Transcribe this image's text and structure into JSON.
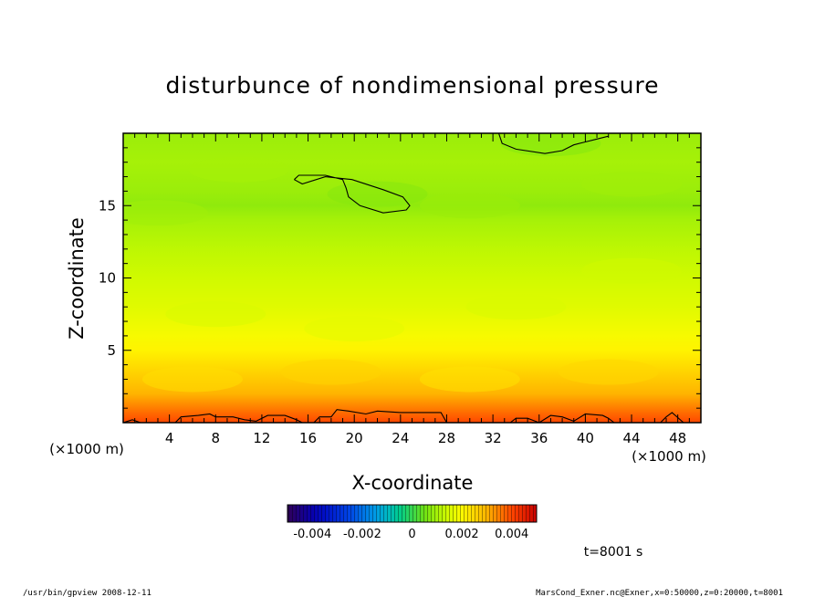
{
  "chart_data": {
    "type": "heatmap",
    "title": "disturbunce of nondimensional pressure",
    "xlabel": "X-coordinate",
    "ylabel": "Z-coordinate",
    "x_unit": "(×1000 m)",
    "y_unit": "(×1000 m)",
    "xlim": [
      0,
      50
    ],
    "ylim": [
      0,
      20
    ],
    "x_ticks": [
      4,
      8,
      12,
      16,
      20,
      24,
      28,
      32,
      36,
      40,
      44,
      48
    ],
    "y_ticks": [
      5,
      10,
      15
    ],
    "colorbar": {
      "range": [
        -0.005,
        0.005
      ],
      "tick_values": [
        -0.004,
        -0.002,
        0,
        0.002,
        0.004
      ],
      "tick_labels": [
        "-0.004",
        "-0.002",
        "0",
        "0.002",
        "0.004"
      ]
    },
    "field_profile": {
      "z": [
        0,
        1,
        2,
        3,
        4,
        5,
        6,
        8,
        10,
        12,
        14,
        15,
        16,
        18,
        20
      ],
      "value": [
        0.004,
        0.0035,
        0.003,
        0.0027,
        0.0024,
        0.0021,
        0.0019,
        0.0016,
        0.0014,
        0.0012,
        0.001,
        0.0008,
        0.0009,
        0.001,
        0.0009
      ]
    },
    "contours": [
      {
        "level": "low",
        "points": [
          [
            14.8,
            16.8
          ],
          [
            15.2,
            17.1
          ],
          [
            17.5,
            17.1
          ],
          [
            19.0,
            16.8
          ],
          [
            19.3,
            16.2
          ],
          [
            19.5,
            15.6
          ],
          [
            20.5,
            15.0
          ],
          [
            22.5,
            14.5
          ],
          [
            24.5,
            14.7
          ],
          [
            24.8,
            15.0
          ],
          [
            24.2,
            15.6
          ],
          [
            22.5,
            16.1
          ],
          [
            19.8,
            16.8
          ],
          [
            17.5,
            17.0
          ],
          [
            15.5,
            16.5
          ],
          [
            14.8,
            16.8
          ]
        ]
      },
      {
        "level": "low",
        "points": [
          [
            32.5,
            20.0
          ],
          [
            32.8,
            19.3
          ],
          [
            34.0,
            18.9
          ],
          [
            36.5,
            18.6
          ],
          [
            38.0,
            18.8
          ],
          [
            39.0,
            19.2
          ],
          [
            40.0,
            19.4
          ],
          [
            41.0,
            19.6
          ],
          [
            42.0,
            19.8
          ]
        ]
      },
      {
        "level": "high",
        "points": [
          [
            0.0,
            0.0
          ],
          [
            0.8,
            0.2
          ],
          [
            1.5,
            0.0
          ],
          [
            4.5,
            0.0
          ],
          [
            5.0,
            0.4
          ],
          [
            6.5,
            0.5
          ],
          [
            7.5,
            0.6
          ],
          [
            8.0,
            0.4
          ],
          [
            9.5,
            0.4
          ],
          [
            10.5,
            0.2
          ],
          [
            11.5,
            0.1
          ],
          [
            12.5,
            0.5
          ],
          [
            14.0,
            0.5
          ],
          [
            15.0,
            0.2
          ],
          [
            15.5,
            0.0
          ],
          [
            16.5,
            0.0
          ],
          [
            17.0,
            0.4
          ],
          [
            18.0,
            0.4
          ],
          [
            18.5,
            0.9
          ],
          [
            19.5,
            0.8
          ],
          [
            21.0,
            0.6
          ],
          [
            22.0,
            0.8
          ],
          [
            24.0,
            0.7
          ],
          [
            27.5,
            0.7
          ],
          [
            28.0,
            0.0
          ],
          [
            29.5,
            0.0
          ],
          [
            30.0,
            0.0
          ],
          [
            33.5,
            0.0
          ],
          [
            34.0,
            0.3
          ],
          [
            35.0,
            0.3
          ],
          [
            36.0,
            0.0
          ],
          [
            37.0,
            0.5
          ],
          [
            38.0,
            0.4
          ],
          [
            39.0,
            0.1
          ],
          [
            40.0,
            0.6
          ],
          [
            41.5,
            0.5
          ],
          [
            42.0,
            0.3
          ],
          [
            42.5,
            0.0
          ],
          [
            46.5,
            0.0
          ],
          [
            47.0,
            0.4
          ],
          [
            47.5,
            0.7
          ],
          [
            48.5,
            0.0
          ]
        ]
      }
    ]
  },
  "annotations": {
    "time_label": "t=8001 s",
    "footer_left": "/usr/bin/gpview   2008-12-11",
    "footer_right": "MarsCond_Exner.nc@Exner,x=0:50000,z=0:20000,t=8001"
  }
}
